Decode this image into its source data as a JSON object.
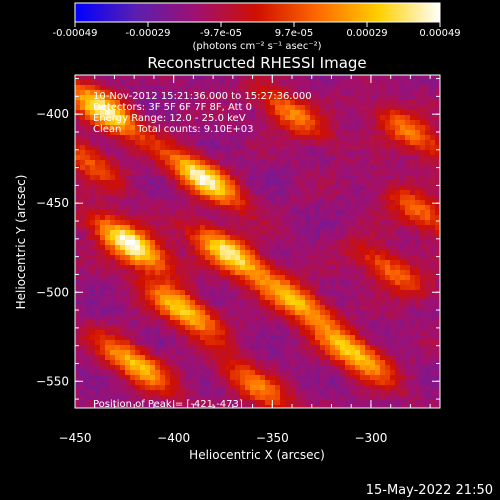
{
  "colorbar": {
    "tick_labels": [
      "-0.00049",
      "-0.00029",
      "-9.7e-05",
      "9.7e-05",
      "0.00029",
      "0.00049"
    ],
    "units": "(photons cm⁻² s⁻¹ asec⁻²)",
    "range": [
      -0.00049,
      0.00049
    ],
    "colors": [
      "#0000ff",
      "#5a1fb0",
      "#a01070",
      "#d01000",
      "#ff6a00",
      "#ffd000",
      "#ffffff"
    ]
  },
  "chart_data": {
    "type": "heatmap",
    "title": "Reconstructed RHESSI Image",
    "xlabel": "Heliocentric X (arcsec)",
    "ylabel": "Heliocentric Y (arcsec)",
    "xlim": [
      -450,
      -265
    ],
    "ylim": [
      -565,
      -378
    ],
    "x_ticks": [
      -450,
      -400,
      -350,
      -300
    ],
    "y_ticks": [
      -550,
      -500,
      -450,
      -400
    ],
    "annotations": [
      "10-Nov-2012 15:21:36.000 to 15:27:36.000",
      "Detectors: 3F 5F 6F 7F 8F, Att 0",
      "Energy Range: 12.0 - 25.0 keV",
      "Clean     Total counts: 9.10E+03"
    ],
    "peak_label": "Position of Peak = [-421,-473]",
    "peak": [
      -421,
      -473
    ],
    "sources": [
      {
        "x": -422,
        "y": -473,
        "amp": 1.0
      },
      {
        "x": -435,
        "y": -398,
        "amp": 0.85
      },
      {
        "x": -385,
        "y": -436,
        "amp": 0.9
      },
      {
        "x": -372,
        "y": -478,
        "amp": 0.85
      },
      {
        "x": -395,
        "y": -510,
        "amp": 0.75
      },
      {
        "x": -420,
        "y": -540,
        "amp": 0.7
      },
      {
        "x": -338,
        "y": -505,
        "amp": 0.7
      },
      {
        "x": -308,
        "y": -535,
        "amp": 0.75
      },
      {
        "x": -340,
        "y": -400,
        "amp": 0.55
      },
      {
        "x": -280,
        "y": -410,
        "amp": 0.55
      },
      {
        "x": -275,
        "y": -455,
        "amp": 0.5
      },
      {
        "x": -290,
        "y": -488,
        "amp": 0.5
      },
      {
        "x": -358,
        "y": -553,
        "amp": 0.5
      },
      {
        "x": -445,
        "y": -425,
        "amp": 0.45
      }
    ]
  },
  "footer": {
    "timestamp": "15-May-2022 21:50"
  }
}
